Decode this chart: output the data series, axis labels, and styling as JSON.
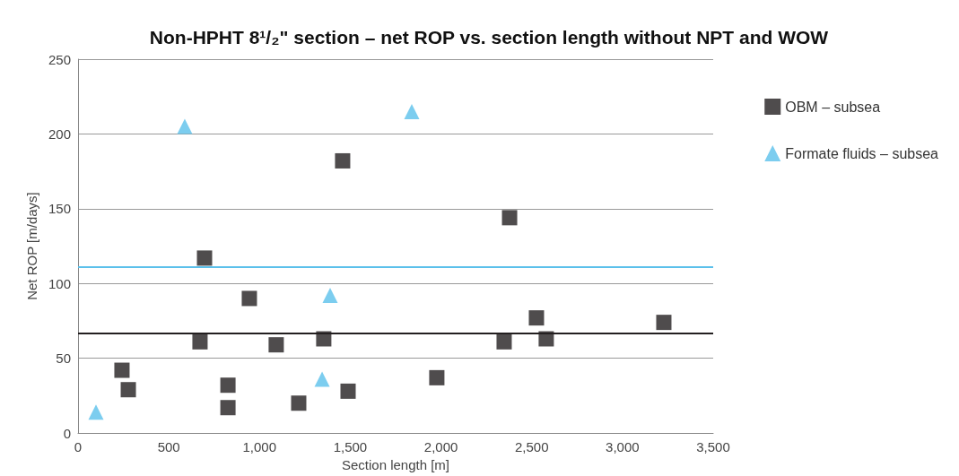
{
  "chart_data": {
    "type": "scatter",
    "title": "Non-HPHT 8¹/₂\" section – net ROP vs. section length without NPT and WOW",
    "xlabel": "Section length [m]",
    "ylabel": "Net ROP [m/days]",
    "series": [
      {
        "name": "OBM – subsea",
        "color": "#231f20",
        "marker": "square",
        "x": [
          242,
          277,
          672,
          697,
          826,
          826,
          944,
          1092,
          1216,
          1354,
          1458,
          1488,
          1977,
          2348,
          2378,
          2526,
          2580,
          3228
        ],
        "values": [
          42,
          29,
          61,
          117,
          32,
          17,
          90,
          59,
          20,
          63,
          182,
          28,
          37,
          61,
          144,
          77,
          63,
          74
        ]
      },
      {
        "name": "Formate fluids – subsea",
        "color": "#5bc0eb",
        "marker": "triangle",
        "x": [
          99,
          588,
          1345,
          1389,
          1839
        ],
        "values": [
          14,
          205,
          36,
          92,
          215
        ]
      }
    ],
    "ref_lines": [
      {
        "axis": "y",
        "value": 111,
        "color": "#5bc0eb"
      },
      {
        "axis": "y",
        "value": 66.5,
        "color": "#231f20"
      }
    ],
    "xlim": [
      0,
      3500
    ],
    "xticks": [
      0,
      500,
      {
        "value": 1000,
        "label": "1,000"
      },
      {
        "value": 1500,
        "label": "1,500"
      },
      {
        "value": 2000,
        "label": "2,000"
      },
      {
        "value": 2500,
        "label": "2,500"
      },
      {
        "value": 3000,
        "label": "3,000"
      },
      {
        "value": 3500,
        "label": "3,500"
      }
    ],
    "ylim": [
      0,
      250
    ],
    "yticks": [
      0,
      50,
      100,
      150,
      200,
      250
    ],
    "grid": "y",
    "legend": "right"
  }
}
